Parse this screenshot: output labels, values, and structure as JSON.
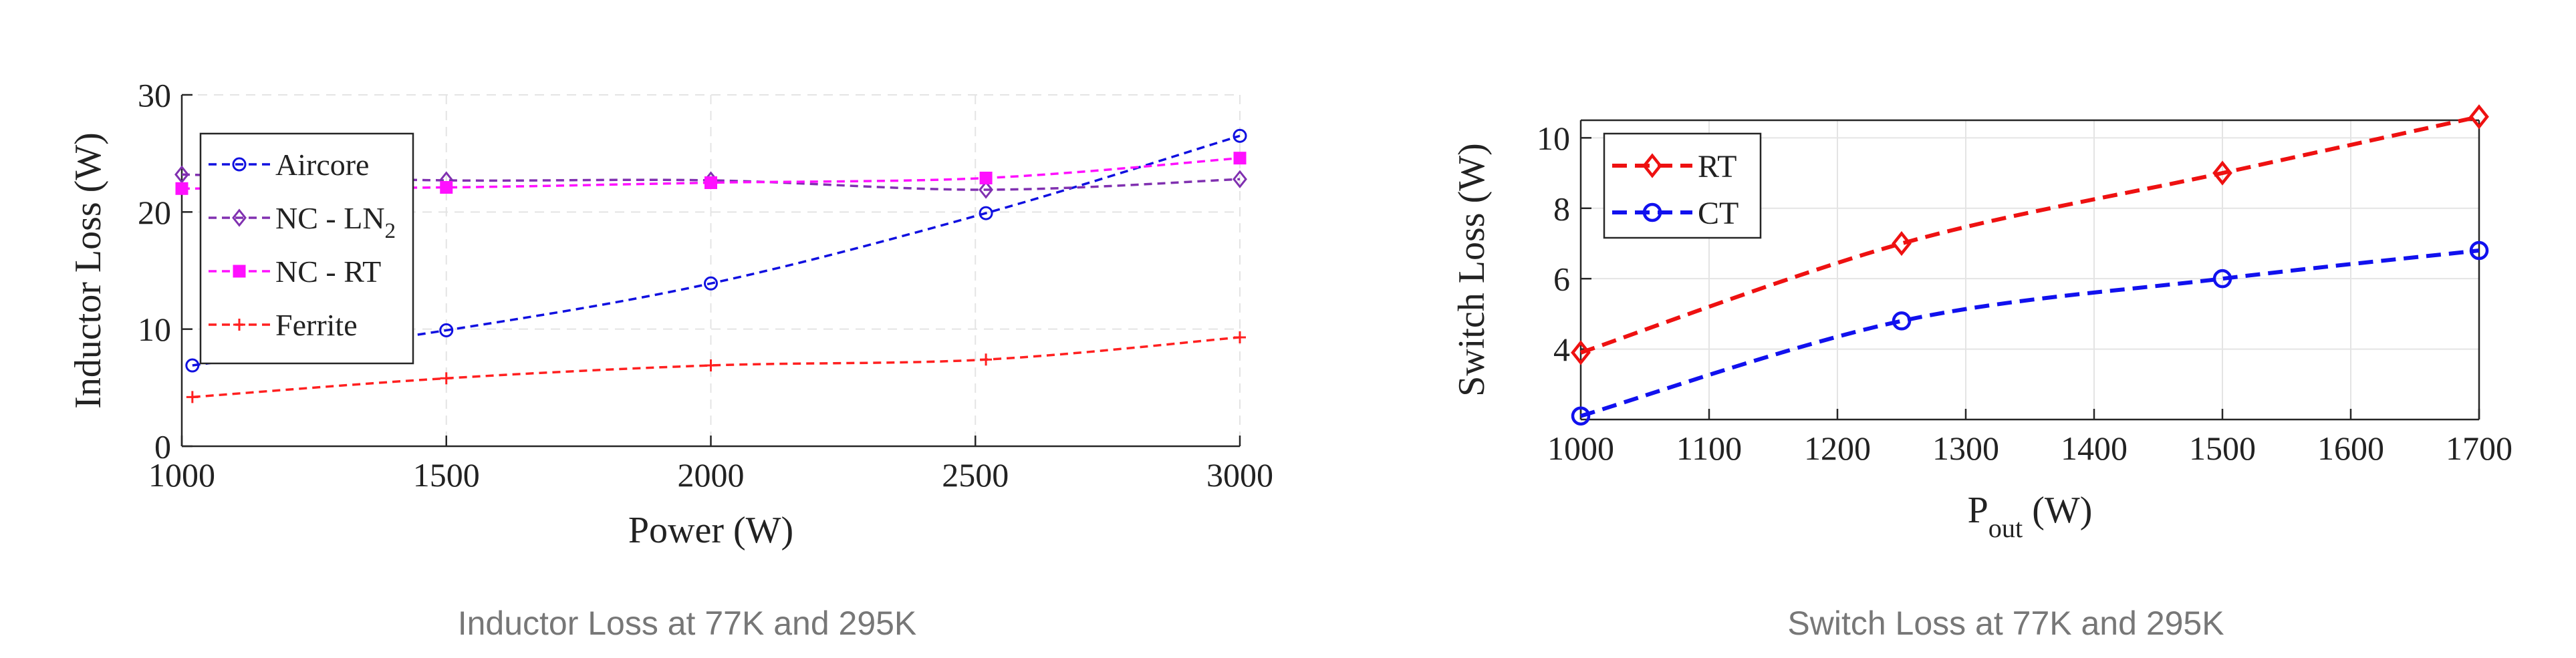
{
  "chart_data": [
    {
      "type": "line",
      "caption": "Inductor Loss at 77K and 295K",
      "xlabel": "Power (W)",
      "ylabel": "Inductor Loss (W)",
      "xlim": [
        1000,
        3000
      ],
      "ylim": [
        0,
        30
      ],
      "xticks": [
        "1000",
        "1500",
        "2000",
        "2500",
        "3000"
      ],
      "yticks": [
        "0",
        "10",
        "20",
        "30"
      ],
      "grid": true,
      "legend_position": "top-left",
      "series": [
        {
          "name": "Aircore",
          "color": "#1010e0",
          "marker": "circle",
          "x": [
            1020,
            1500,
            2000,
            2520,
            3000
          ],
          "y": [
            6.9,
            9.9,
            13.9,
            19.9,
            26.5
          ]
        },
        {
          "name": "NC - LN",
          "name_sub": "2",
          "color": "#8030b0",
          "marker": "diamond",
          "x": [
            1000,
            1500,
            2000,
            2520,
            3000
          ],
          "y": [
            23.2,
            22.7,
            22.7,
            21.9,
            22.8
          ]
        },
        {
          "name": "NC - RT",
          "color": "#ff10ff",
          "marker": "square",
          "x": [
            1000,
            1500,
            2000,
            2520,
            3000
          ],
          "y": [
            22.0,
            22.1,
            22.5,
            22.9,
            24.6
          ]
        },
        {
          "name": "Ferrite",
          "color": "#ff2020",
          "marker": "plus",
          "x": [
            1020,
            1500,
            2000,
            2520,
            3000
          ],
          "y": [
            4.2,
            5.8,
            6.9,
            7.4,
            9.3
          ]
        }
      ]
    },
    {
      "type": "line",
      "caption": "Switch Loss at 77K and 295K",
      "xlabel": "P",
      "xlabel_sub": "out",
      "xlabel_unit": " (W)",
      "ylabel": "Switch Loss (W)",
      "xlim": [
        1000,
        1700
      ],
      "ylim": [
        2,
        10.5
      ],
      "xticks": [
        "1000",
        "1100",
        "1200",
        "1300",
        "1400",
        "1500",
        "1600",
        "1700"
      ],
      "yticks": [
        "4",
        "6",
        "8",
        "10"
      ],
      "grid": true,
      "legend_position": "top-left",
      "series": [
        {
          "name": "RT",
          "color": "#ee1111",
          "marker": "diamond",
          "x": [
            1000,
            1250,
            1500,
            1700
          ],
          "y": [
            3.9,
            7.0,
            9.0,
            10.6
          ]
        },
        {
          "name": "CT",
          "color": "#1111ee",
          "marker": "circle",
          "x": [
            1000,
            1250,
            1500,
            1700
          ],
          "y": [
            2.1,
            4.8,
            6.0,
            6.8
          ]
        }
      ]
    }
  ]
}
